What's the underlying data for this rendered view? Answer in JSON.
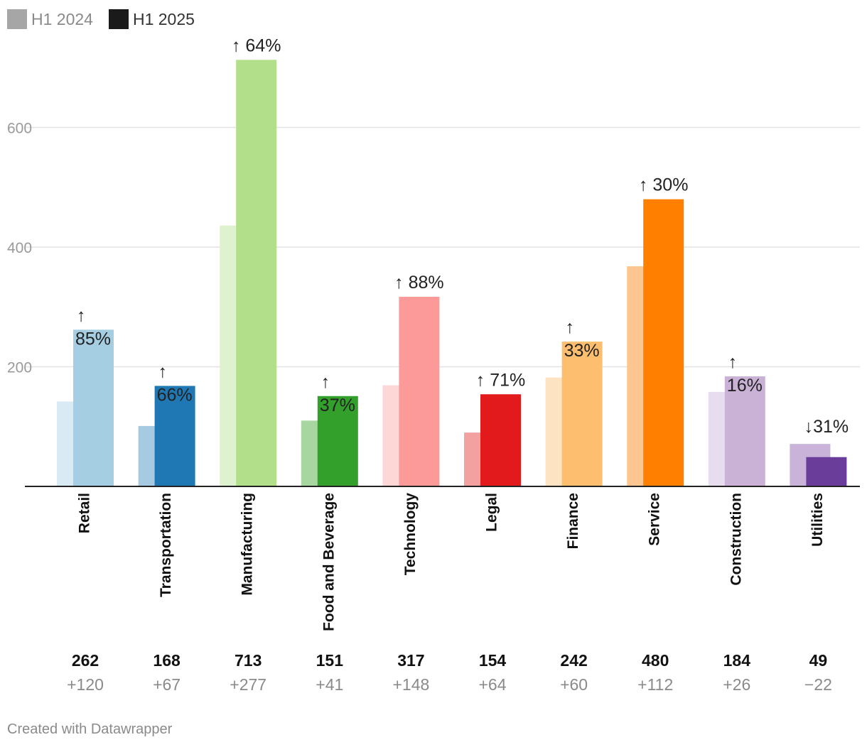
{
  "legend": [
    {
      "label": "H1 2024",
      "color": "#a6a6a6"
    },
    {
      "label": "H1 2025",
      "color": "#1a1a1a"
    }
  ],
  "credit": "Created with Datawrapper",
  "chart_data": {
    "type": "bar",
    "title": "",
    "xlabel": "",
    "ylabel": "",
    "ylim": [
      0,
      760
    ],
    "yticks": [
      200,
      400,
      600
    ],
    "grid": true,
    "legend_position": "top-left",
    "categories": [
      "Retail",
      "Transportation",
      "Manufacturing",
      "Food and Beverage",
      "Technology",
      "Legal",
      "Finance",
      "Service",
      "Construction",
      "Utilities"
    ],
    "series": [
      {
        "name": "H1 2024",
        "values": [
          142,
          101,
          436,
          110,
          169,
          90,
          182,
          368,
          158,
          71
        ]
      },
      {
        "name": "H1 2025",
        "values": [
          262,
          168,
          713,
          151,
          317,
          154,
          242,
          480,
          184,
          49
        ]
      }
    ],
    "change_labels": [
      "↑ 85%",
      "↑ 66%",
      "↑ 64%",
      "↑ 37%",
      "↑ 88%",
      "↑ 71%",
      "↑ 33%",
      "↑ 30%",
      "↑ 16%",
      "↓31%"
    ],
    "totals": [
      "262",
      "168",
      "713",
      "151",
      "317",
      "154",
      "242",
      "480",
      "184",
      "49"
    ],
    "diffs": [
      "+120",
      "+67",
      "+277",
      "+41",
      "+148",
      "+64",
      "+60",
      "+112",
      "+26",
      "−22"
    ],
    "colors_2024": [
      "#daeaf4",
      "#a6cae2",
      "#dff2cf",
      "#a7d6a0",
      "#fdd6d6",
      "#f2a0a0",
      "#fde3c2",
      "#fdc690",
      "#e8dcef",
      "#c9b3d9"
    ],
    "colors_2025": [
      "#a6cee3",
      "#1f78b4",
      "#b2df8a",
      "#33a02c",
      "#fb9a99",
      "#e31a1c",
      "#fdbf6f",
      "#ff7f00",
      "#cab2d6",
      "#6a3d9a"
    ]
  }
}
